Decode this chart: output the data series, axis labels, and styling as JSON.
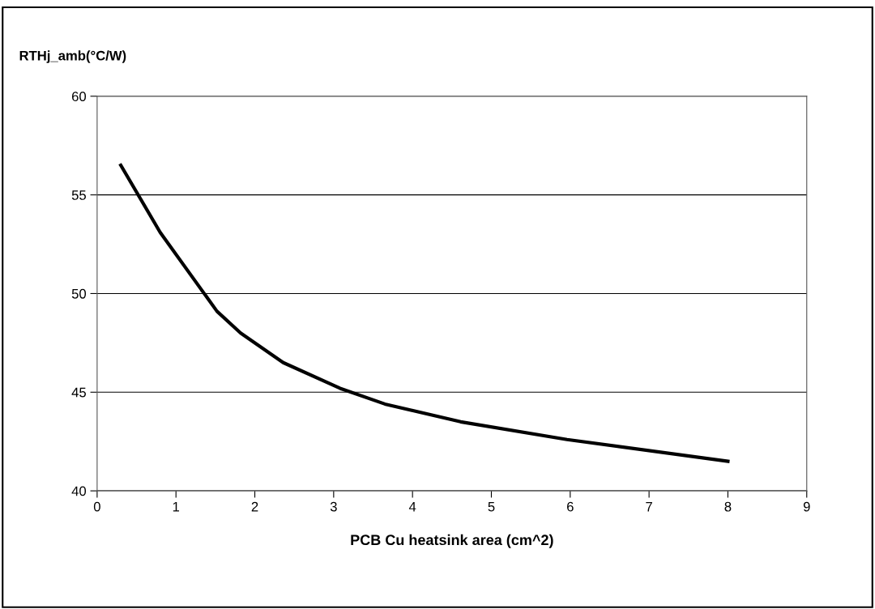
{
  "chart_data": {
    "type": "line",
    "xlabel": "PCB Cu heatsink area (cm^2)",
    "ylabel": "RTHj_amb(°C/W)",
    "series": [
      {
        "color": "#000000",
        "x": [
          0.3,
          0.8,
          1.52,
          1.82,
          2.36,
          3.08,
          3.65,
          4.61,
          5.96,
          8.0
        ],
        "values": [
          56.5,
          53.1,
          49.1,
          48.0,
          46.5,
          45.2,
          44.4,
          43.5,
          42.6,
          41.5
        ]
      }
    ],
    "xlim": [
      0,
      9
    ],
    "xticks": [
      0,
      1,
      2,
      3,
      4,
      5,
      6,
      7,
      8,
      9
    ],
    "ylim": [
      40,
      60
    ],
    "yticks": [
      40,
      45,
      50,
      55,
      60
    ],
    "grid": "y",
    "legend": false,
    "marker": "none",
    "line_style": "solid"
  }
}
